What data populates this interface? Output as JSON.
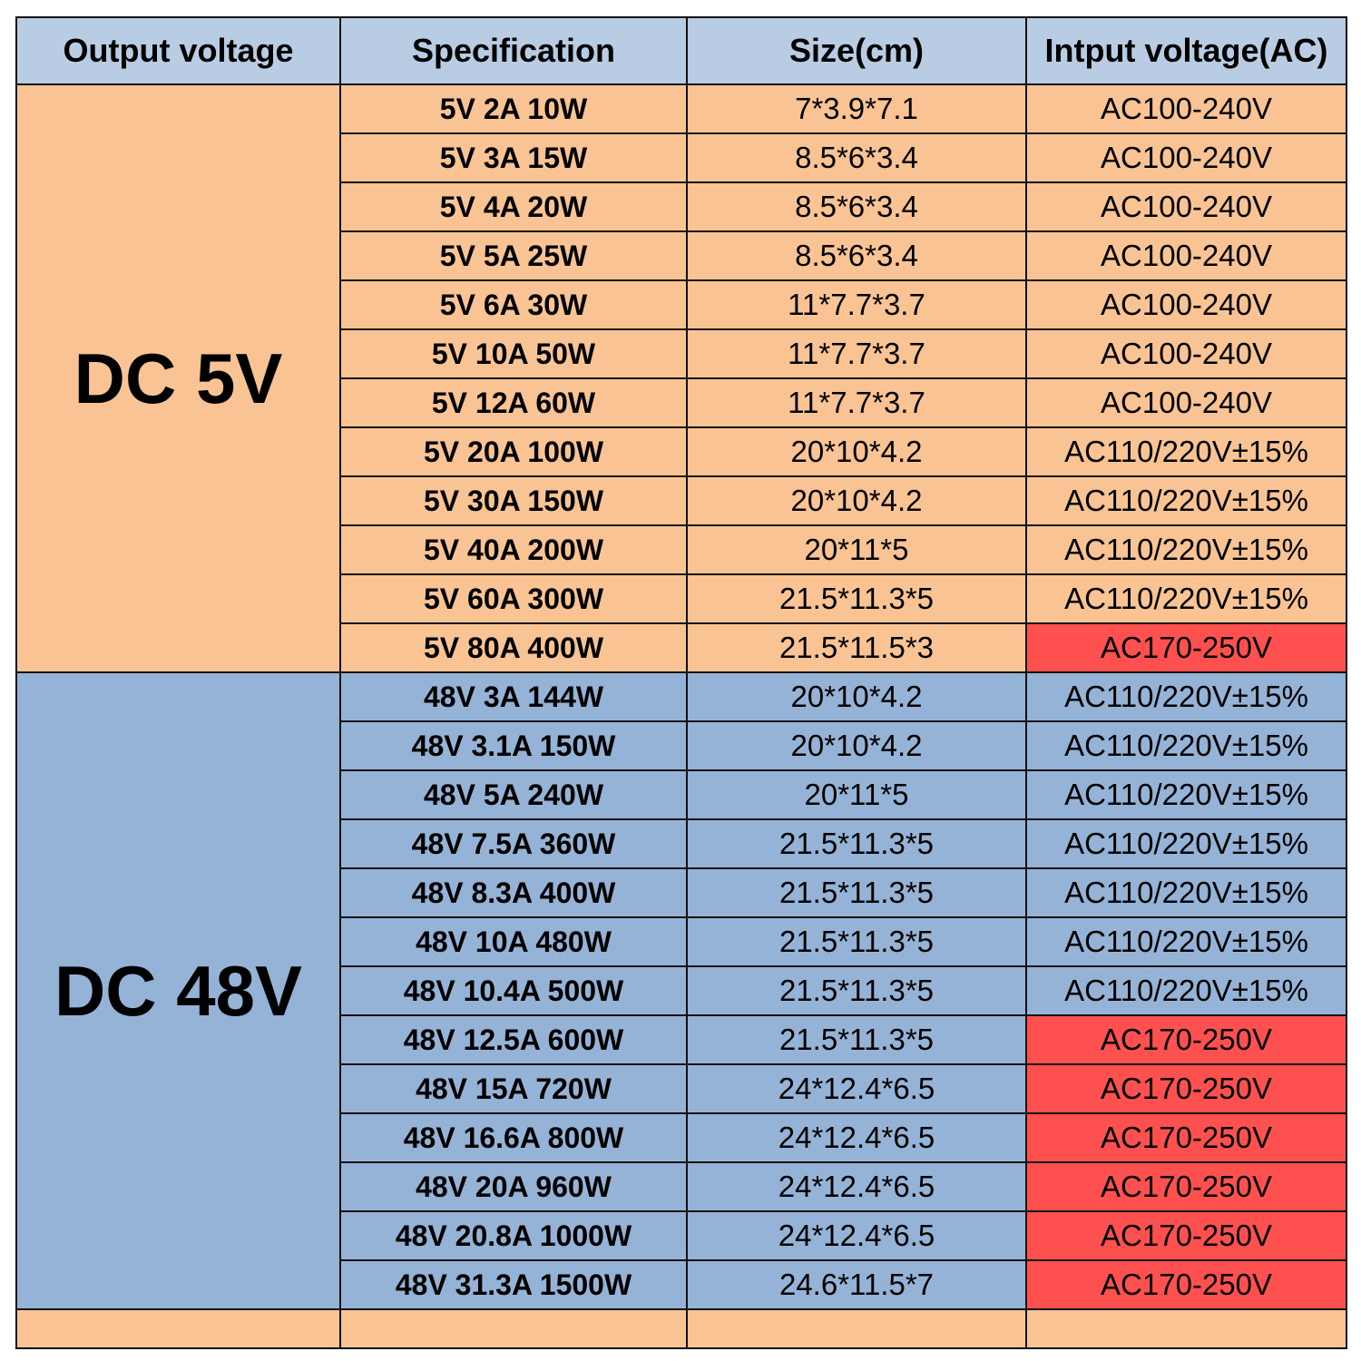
{
  "header": {
    "output_voltage": "Output voltage",
    "specification": "Specification",
    "size": "Size(cm)",
    "input_voltage": "Intput voltage(AC)"
  },
  "colors": {
    "header": "#b8cce4",
    "dc5v_group": "#f9c394",
    "dc48v_group": "#95b3d7",
    "highlight": "#ff5050"
  },
  "groups": [
    {
      "label": "DC 5V",
      "rows": [
        {
          "spec": "5V 2A 10W",
          "size": "7*3.9*7.1",
          "input": "AC100-240V",
          "highlight": false
        },
        {
          "spec": "5V 3A 15W",
          "size": "8.5*6*3.4",
          "input": "AC100-240V",
          "highlight": false
        },
        {
          "spec": "5V 4A 20W",
          "size": "8.5*6*3.4",
          "input": "AC100-240V",
          "highlight": false
        },
        {
          "spec": "5V 5A 25W",
          "size": "8.5*6*3.4",
          "input": "AC100-240V",
          "highlight": false
        },
        {
          "spec": "5V 6A 30W",
          "size": "11*7.7*3.7",
          "input": "AC100-240V",
          "highlight": false
        },
        {
          "spec": "5V 10A 50W",
          "size": "11*7.7*3.7",
          "input": "AC100-240V",
          "highlight": false
        },
        {
          "spec": "5V 12A 60W",
          "size": "11*7.7*3.7",
          "input": "AC100-240V",
          "highlight": false
        },
        {
          "spec": "5V 20A 100W",
          "size": "20*10*4.2",
          "input": "AC110/220V±15%",
          "highlight": false
        },
        {
          "spec": "5V 30A 150W",
          "size": "20*10*4.2",
          "input": "AC110/220V±15%",
          "highlight": false
        },
        {
          "spec": "5V 40A 200W",
          "size": "20*11*5",
          "input": "AC110/220V±15%",
          "highlight": false
        },
        {
          "spec": "5V 60A 300W",
          "size": "21.5*11.3*5",
          "input": "AC110/220V±15%",
          "highlight": false
        },
        {
          "spec": "5V 80A 400W",
          "size": "21.5*11.5*3",
          "input": "AC170-250V",
          "highlight": true
        }
      ]
    },
    {
      "label": "DC 48V",
      "rows": [
        {
          "spec": "48V 3A 144W",
          "size": "20*10*4.2",
          "input": "AC110/220V±15%",
          "highlight": false
        },
        {
          "spec": "48V 3.1A 150W",
          "size": "20*10*4.2",
          "input": "AC110/220V±15%",
          "highlight": false
        },
        {
          "spec": "48V 5A 240W",
          "size": "20*11*5",
          "input": "AC110/220V±15%",
          "highlight": false
        },
        {
          "spec": "48V 7.5A 360W",
          "size": "21.5*11.3*5",
          "input": "AC110/220V±15%",
          "highlight": false
        },
        {
          "spec": "48V 8.3A 400W",
          "size": "21.5*11.3*5",
          "input": "AC110/220V±15%",
          "highlight": false
        },
        {
          "spec": "48V 10A 480W",
          "size": "21.5*11.3*5",
          "input": "AC110/220V±15%",
          "highlight": false
        },
        {
          "spec": "48V 10.4A 500W",
          "size": "21.5*11.3*5",
          "input": "AC110/220V±15%",
          "highlight": false
        },
        {
          "spec": "48V 12.5A 600W",
          "size": "21.5*11.3*5",
          "input": "AC170-250V",
          "highlight": true
        },
        {
          "spec": "48V 15A 720W",
          "size": "24*12.4*6.5",
          "input": "AC170-250V",
          "highlight": true
        },
        {
          "spec": "48V 16.6A 800W",
          "size": "24*12.4*6.5",
          "input": "AC170-250V",
          "highlight": true
        },
        {
          "spec": "48V 20A 960W",
          "size": "24*12.4*6.5",
          "input": "AC170-250V",
          "highlight": true
        },
        {
          "spec": "48V 20.8A 1000W",
          "size": "24*12.4*6.5",
          "input": "AC170-250V",
          "highlight": true
        },
        {
          "spec": "48V 31.3A 1500W",
          "size": "24.6*11.5*7",
          "input": "AC170-250V",
          "highlight": true
        }
      ]
    }
  ]
}
